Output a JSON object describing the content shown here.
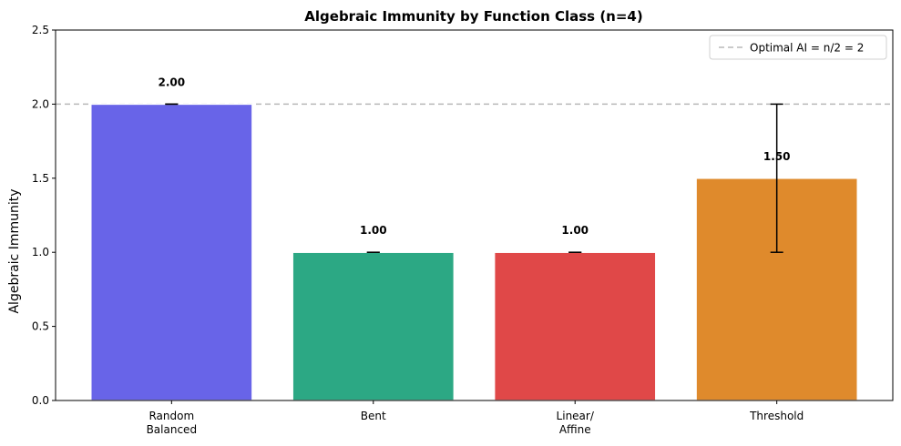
{
  "chart_data": {
    "type": "bar",
    "title": "Algebraic Immunity by Function Class (n=4)",
    "xlabel": "",
    "ylabel": "Algebraic Immunity",
    "ylim": [
      0,
      2.5
    ],
    "yticks": [
      0.0,
      0.5,
      1.0,
      1.5,
      2.0,
      2.5
    ],
    "ytick_labels": [
      "0.0",
      "0.5",
      "1.0",
      "1.5",
      "2.0",
      "2.5"
    ],
    "categories": [
      [
        "Random",
        "Balanced"
      ],
      [
        "Bent"
      ],
      [
        "Linear/",
        "Affine"
      ],
      [
        "Threshold"
      ]
    ],
    "values": [
      2.0,
      1.0,
      1.0,
      1.5
    ],
    "value_labels": [
      "2.00",
      "1.00",
      "1.00",
      "1.50"
    ],
    "errors": [
      [
        2.0,
        2.0
      ],
      [
        1.0,
        1.0
      ],
      [
        1.0,
        1.0
      ],
      [
        1.0,
        2.0
      ]
    ],
    "bar_colors": [
      "#6864e8",
      "#2ca884",
      "#e04848",
      "#df8a2c"
    ],
    "reference_line": {
      "value": 2.0,
      "label": "Optimal AI = n/2 = 2",
      "color": "#b8b8b8",
      "style": "dashed"
    },
    "legend_position": "top-right",
    "grid": false
  }
}
